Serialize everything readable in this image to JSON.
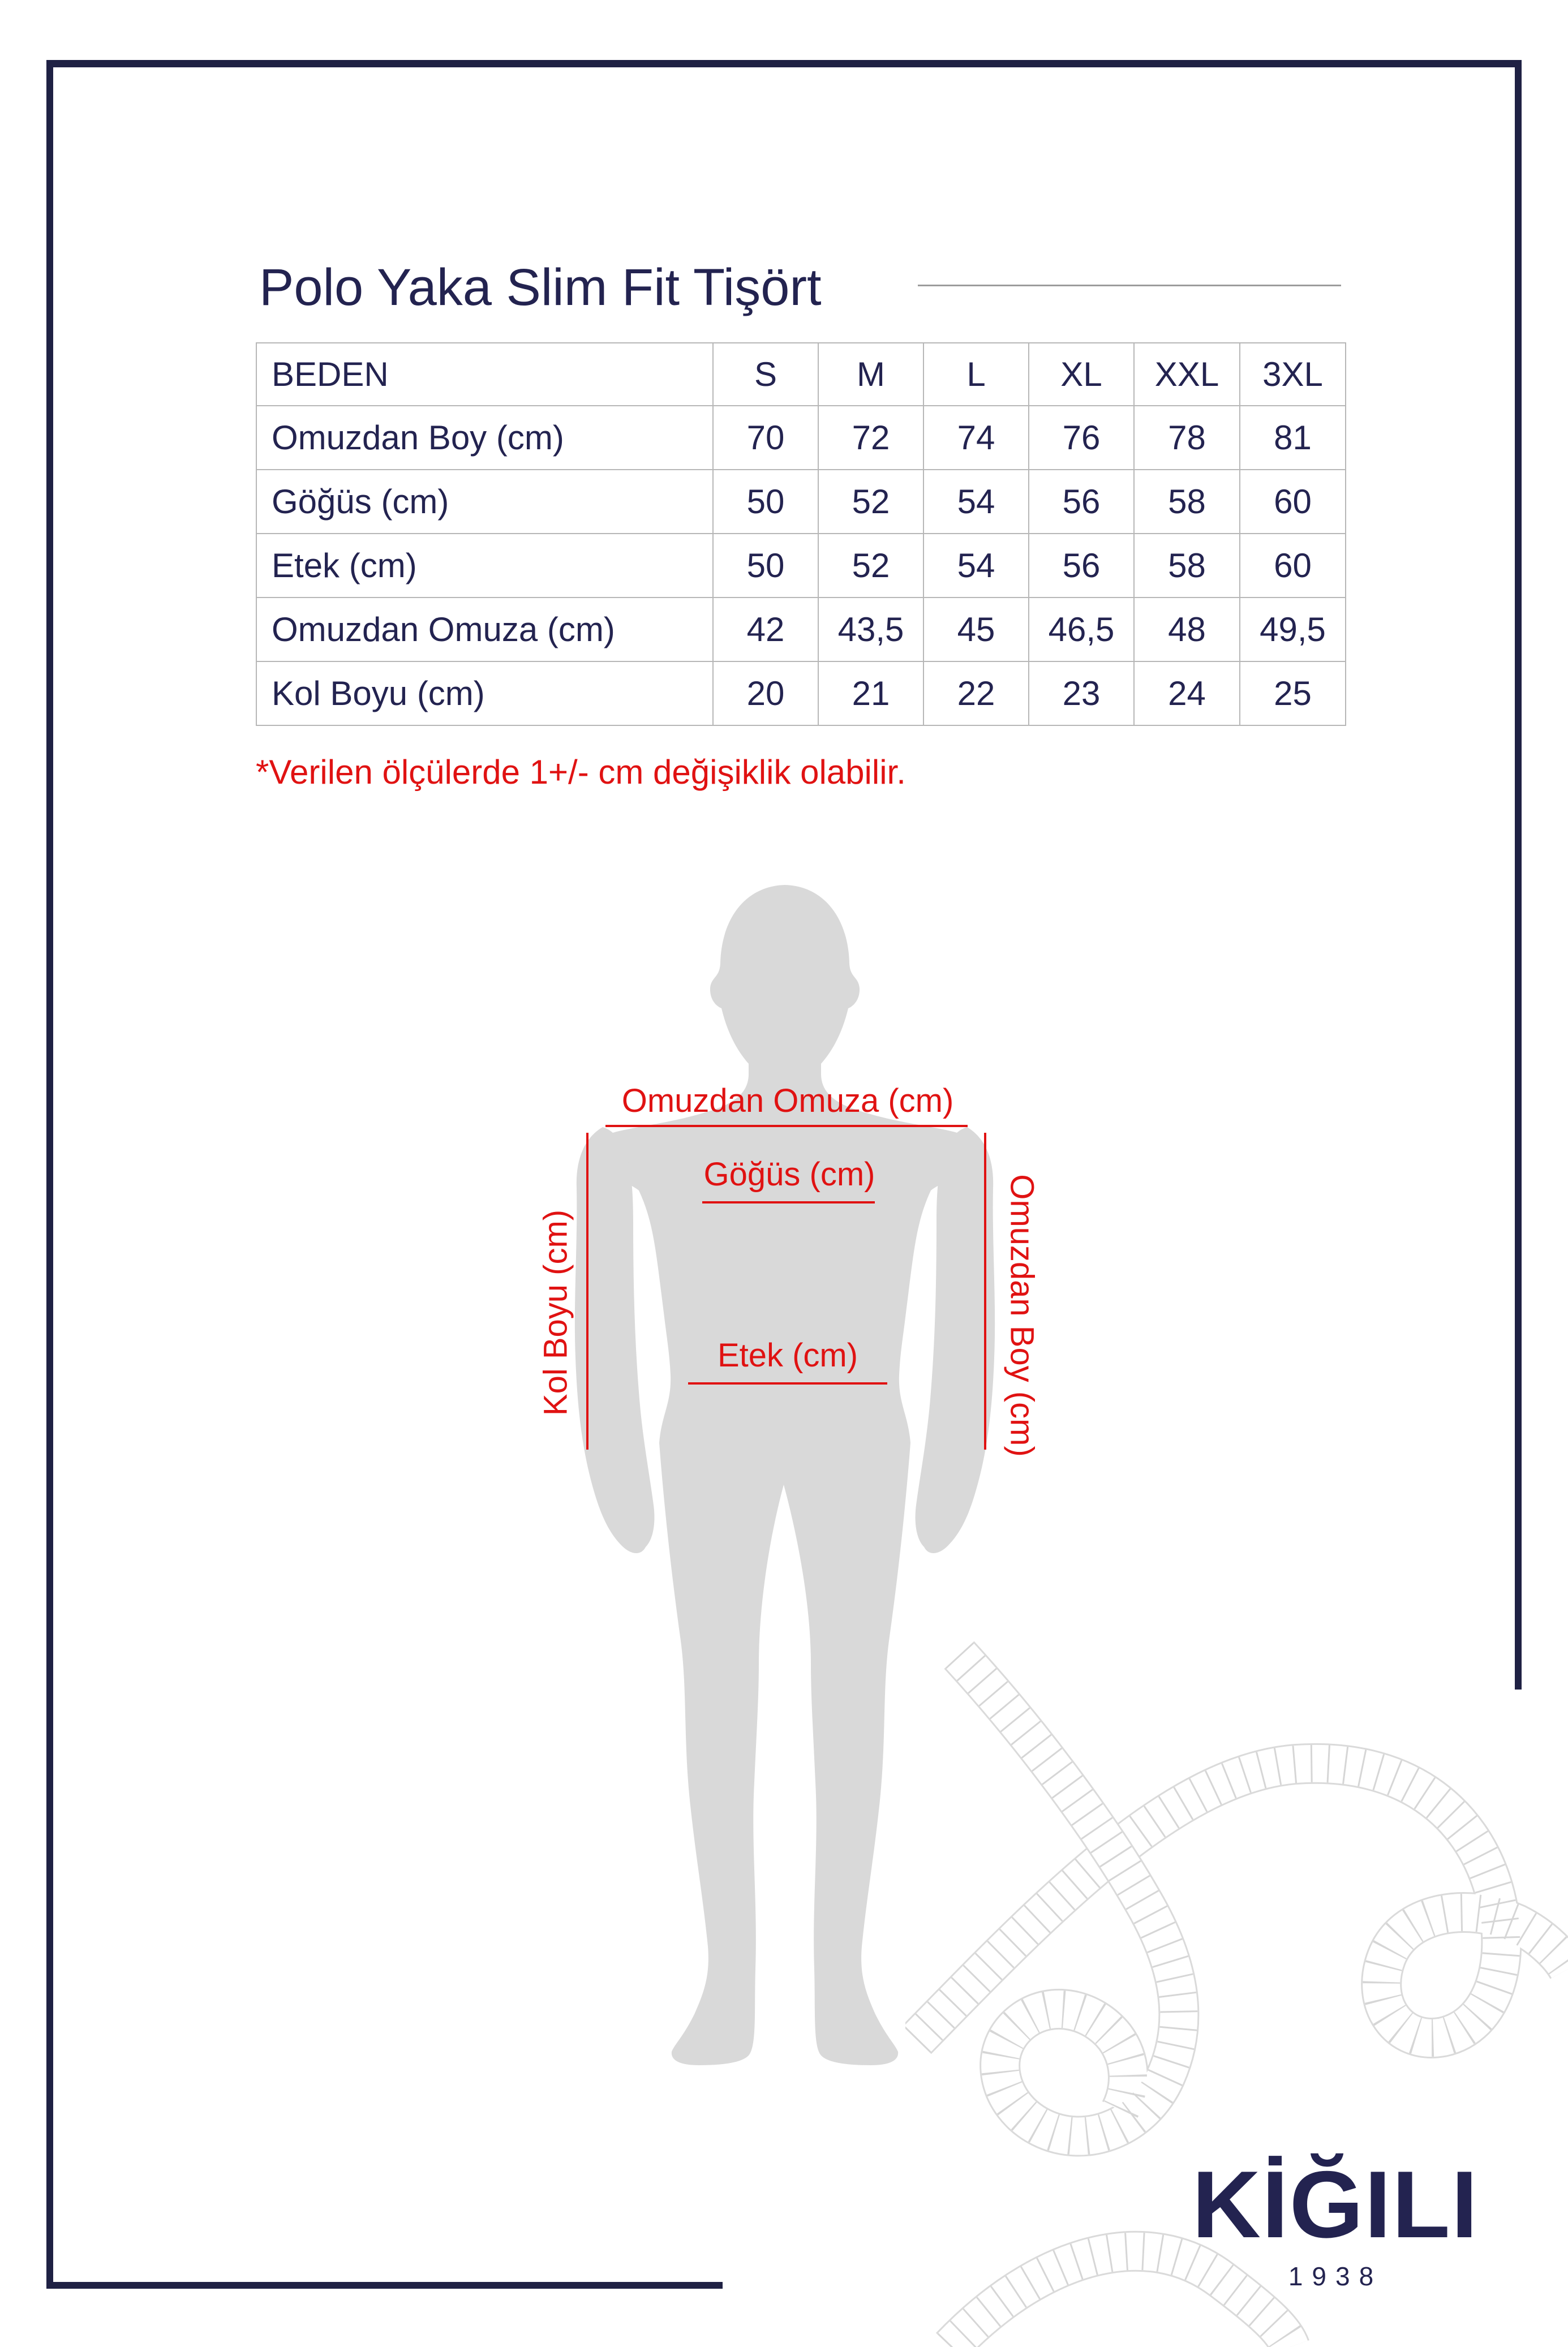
{
  "colors": {
    "navy": "#232350",
    "frame": "#1f2144",
    "red": "#e01212",
    "sil": "#d9d9d9",
    "grid": "#b7b7b7",
    "rule": "#9c9c9c"
  },
  "header": {
    "title": "Polo Yaka Slim Fit Tişört"
  },
  "size_table": {
    "headers": [
      "BEDEN",
      "S",
      "M",
      "L",
      "XL",
      "XXL",
      "3XL"
    ],
    "rows": [
      {
        "label": "Omuzdan Boy (cm)",
        "values": [
          "70",
          "72",
          "74",
          "76",
          "78",
          "81"
        ]
      },
      {
        "label": "Göğüs (cm)",
        "values": [
          "50",
          "52",
          "54",
          "56",
          "58",
          "60"
        ]
      },
      {
        "label": "Etek (cm)",
        "values": [
          "50",
          "52",
          "54",
          "56",
          "58",
          "60"
        ]
      },
      {
        "label": "Omuzdan Omuza (cm)",
        "values": [
          "42",
          "43,5",
          "45",
          "46,5",
          "48",
          "49,5"
        ]
      },
      {
        "label": "Kol Boyu (cm)",
        "values": [
          "20",
          "21",
          "22",
          "23",
          "24",
          "25"
        ]
      }
    ]
  },
  "note": "*Verilen ölçülerde 1+/- cm değişiklik olabilir.",
  "figure": {
    "labels": {
      "shoulder_to_shoulder": "Omuzdan Omuza (cm)",
      "chest": "Göğüs (cm)",
      "hem": "Etek (cm)",
      "sleeve": "Kol Boyu (cm)",
      "shoulder_length": "Omuzdan Boy (cm)"
    }
  },
  "brand": {
    "logo_text": "KİĞILI",
    "year": "1938"
  }
}
